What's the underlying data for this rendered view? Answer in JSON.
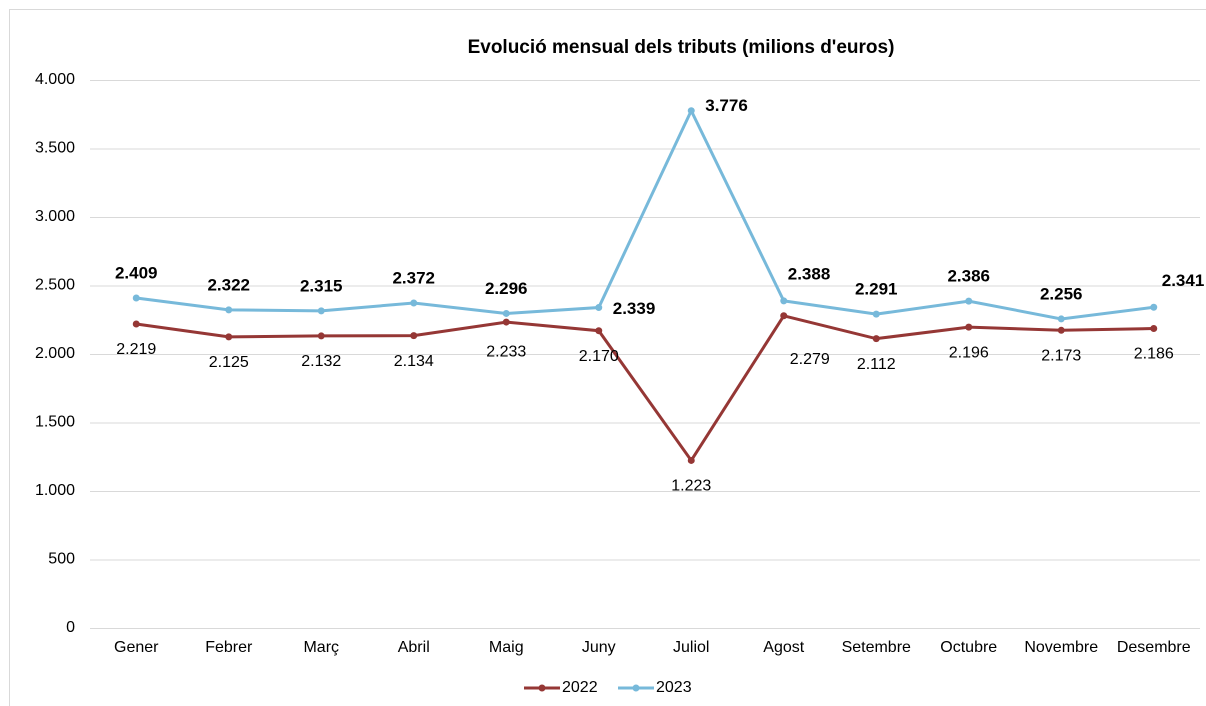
{
  "chart_data": {
    "type": "line",
    "title": "Evolució mensual dels tributs (milions d'euros)",
    "categories": [
      "Gener",
      "Febrer",
      "Març",
      "Abril",
      "Maig",
      "Juny",
      "Juliol",
      "Agost",
      "Setembre",
      "Octubre",
      "Novembre",
      "Desembre"
    ],
    "series": [
      {
        "name": "2022",
        "color": "#953735",
        "values": [
          2219,
          2125,
          2132,
          2134,
          2233,
          2170,
          1223,
          2279,
          2112,
          2196,
          2173,
          2186
        ],
        "value_labels": [
          "2.219",
          "2.125",
          "2.132",
          "2.134",
          "2.233",
          "2.170",
          "1.223",
          "2.279",
          "2.112",
          "2.196",
          "2.173",
          "2.186"
        ]
      },
      {
        "name": "2023",
        "color": "#77b9da",
        "values": [
          2409,
          2322,
          2315,
          2372,
          2296,
          2339,
          3776,
          2388,
          2291,
          2386,
          2256,
          2341
        ],
        "value_labels": [
          "2.409",
          "2.322",
          "2.315",
          "2.372",
          "2.296",
          "2.339",
          "3.776",
          "2.388",
          "2.291",
          "2.386",
          "2.256",
          "2.341"
        ]
      }
    ],
    "ylim": [
      0,
      4000
    ],
    "yticks": [
      0,
      500,
      {
        "value": 1000,
        "label": "1.000"
      },
      {
        "value": 1500,
        "label": "1.500"
      },
      {
        "value": 2000,
        "label": "2.000"
      },
      {
        "value": 2500,
        "label": "2.500"
      },
      {
        "value": 3000,
        "label": "3.000"
      },
      {
        "value": 3500,
        "label": "3.500"
      },
      {
        "value": 4000,
        "label": "4.000"
      }
    ],
    "grid": true,
    "legend": "bottom"
  }
}
